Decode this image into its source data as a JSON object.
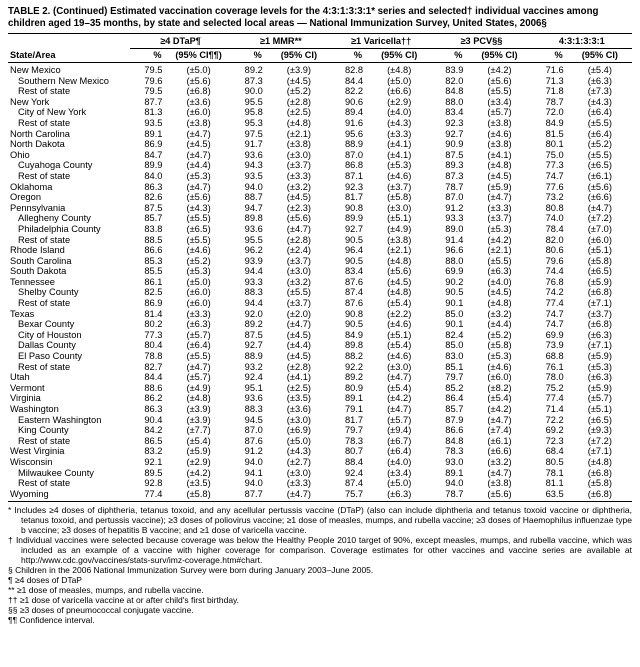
{
  "title": "TABLE 2. (Continued) Estimated vaccination coverage levels for the 4:3:1:3:3:1* series and selected† individual vaccines among children aged 19–35 months, by state and selected local areas — National Immunization Survey, United States, 2006§",
  "columns": {
    "state_area": "State/Area",
    "groups": [
      {
        "label": "≥4 DTaP¶",
        "sub": [
          "%",
          "(95% CI¶¶)"
        ]
      },
      {
        "label": "≥1 MMR**",
        "sub": [
          "%",
          "(95% CI)"
        ]
      },
      {
        "label": "≥1 Varicella††",
        "sub": [
          "%",
          "(95% CI)"
        ]
      },
      {
        "label": "≥3 PCV§§",
        "sub": [
          "%",
          "(95% CI)"
        ]
      },
      {
        "label": "4:3:1:3:3:1",
        "sub": [
          "%",
          "(95% CI)"
        ]
      }
    ]
  },
  "rows": [
    {
      "area": "New Mexico",
      "indent": false,
      "values": [
        [
          "79.5",
          "(±5.0)"
        ],
        [
          "89.2",
          "(±3.9)"
        ],
        [
          "82.8",
          "(±4.8)"
        ],
        [
          "83.9",
          "(±4.2)"
        ],
        [
          "71.6",
          "(±5.4)"
        ]
      ]
    },
    {
      "area": "Southern New Mexico",
      "indent": true,
      "values": [
        [
          "79.6",
          "(±5.6)"
        ],
        [
          "87.3",
          "(±4.5)"
        ],
        [
          "84.4",
          "(±5.0)"
        ],
        [
          "82.0",
          "(±5.6)"
        ],
        [
          "71.3",
          "(±6.3)"
        ]
      ]
    },
    {
      "area": "Rest of state",
      "indent": true,
      "values": [
        [
          "79.5",
          "(±6.8)"
        ],
        [
          "90.0",
          "(±5.2)"
        ],
        [
          "82.2",
          "(±6.6)"
        ],
        [
          "84.8",
          "(±5.5)"
        ],
        [
          "71.8",
          "(±7.3)"
        ]
      ]
    },
    {
      "area": "New York",
      "indent": false,
      "values": [
        [
          "87.7",
          "(±3.6)"
        ],
        [
          "95.5",
          "(±2.8)"
        ],
        [
          "90.6",
          "(±2.9)"
        ],
        [
          "88.0",
          "(±3.4)"
        ],
        [
          "78.7",
          "(±4.3)"
        ]
      ]
    },
    {
      "area": "City of New York",
      "indent": true,
      "values": [
        [
          "81.3",
          "(±6.0)"
        ],
        [
          "95.8",
          "(±2.5)"
        ],
        [
          "89.4",
          "(±4.0)"
        ],
        [
          "83.4",
          "(±5.7)"
        ],
        [
          "72.0",
          "(±6.4)"
        ]
      ]
    },
    {
      "area": "Rest of state",
      "indent": true,
      "values": [
        [
          "93.5",
          "(±3.8)"
        ],
        [
          "95.3",
          "(±4.8)"
        ],
        [
          "91.6",
          "(±4.3)"
        ],
        [
          "92.3",
          "(±3.8)"
        ],
        [
          "84.9",
          "(±5.5)"
        ]
      ]
    },
    {
      "area": "North Carolina",
      "indent": false,
      "values": [
        [
          "89.1",
          "(±4.7)"
        ],
        [
          "97.5",
          "(±2.1)"
        ],
        [
          "95.6",
          "(±3.3)"
        ],
        [
          "92.7",
          "(±4.6)"
        ],
        [
          "81.5",
          "(±6.4)"
        ]
      ]
    },
    {
      "area": "North Dakota",
      "indent": false,
      "values": [
        [
          "86.9",
          "(±4.5)"
        ],
        [
          "91.7",
          "(±3.8)"
        ],
        [
          "88.9",
          "(±4.1)"
        ],
        [
          "90.9",
          "(±3.8)"
        ],
        [
          "80.1",
          "(±5.2)"
        ]
      ]
    },
    {
      "area": "Ohio",
      "indent": false,
      "values": [
        [
          "84.7",
          "(±4.7)"
        ],
        [
          "93.6",
          "(±3.0)"
        ],
        [
          "87.0",
          "(±4.1)"
        ],
        [
          "87.5",
          "(±4.1)"
        ],
        [
          "75.0",
          "(±5.5)"
        ]
      ]
    },
    {
      "area": "Cuyahoga County",
      "indent": true,
      "values": [
        [
          "89.9",
          "(±4.4)"
        ],
        [
          "94.3",
          "(±3.7)"
        ],
        [
          "86.8",
          "(±5.3)"
        ],
        [
          "89.3",
          "(±4.8)"
        ],
        [
          "77.3",
          "(±6.5)"
        ]
      ]
    },
    {
      "area": "Rest of state",
      "indent": true,
      "values": [
        [
          "84.0",
          "(±5.3)"
        ],
        [
          "93.5",
          "(±3.3)"
        ],
        [
          "87.1",
          "(±4.6)"
        ],
        [
          "87.3",
          "(±4.5)"
        ],
        [
          "74.7",
          "(±6.1)"
        ]
      ]
    },
    {
      "area": "Oklahoma",
      "indent": false,
      "values": [
        [
          "86.3",
          "(±4.7)"
        ],
        [
          "94.0",
          "(±3.2)"
        ],
        [
          "92.3",
          "(±3.7)"
        ],
        [
          "78.7",
          "(±5.9)"
        ],
        [
          "77.6",
          "(±5.6)"
        ]
      ]
    },
    {
      "area": "Oregon",
      "indent": false,
      "values": [
        [
          "82.6",
          "(±5.6)"
        ],
        [
          "88.7",
          "(±4.5)"
        ],
        [
          "81.7",
          "(±5.8)"
        ],
        [
          "87.0",
          "(±4.7)"
        ],
        [
          "73.2",
          "(±6.6)"
        ]
      ]
    },
    {
      "area": "Pennsylvania",
      "indent": false,
      "values": [
        [
          "87.5",
          "(±4.3)"
        ],
        [
          "94.7",
          "(±2.3)"
        ],
        [
          "90.8",
          "(±3.0)"
        ],
        [
          "91.2",
          "(±3.3)"
        ],
        [
          "80.8",
          "(±4.7)"
        ]
      ]
    },
    {
      "area": "Allegheny County",
      "indent": true,
      "values": [
        [
          "85.7",
          "(±5.5)"
        ],
        [
          "89.8",
          "(±5.6)"
        ],
        [
          "89.9",
          "(±5.1)"
        ],
        [
          "93.3",
          "(±3.7)"
        ],
        [
          "74.0",
          "(±7.2)"
        ]
      ]
    },
    {
      "area": "Philadelphia County",
      "indent": true,
      "values": [
        [
          "83.8",
          "(±6.5)"
        ],
        [
          "93.6",
          "(±4.7)"
        ],
        [
          "92.7",
          "(±4.9)"
        ],
        [
          "89.0",
          "(±5.3)"
        ],
        [
          "78.4",
          "(±7.0)"
        ]
      ]
    },
    {
      "area": "Rest of state",
      "indent": true,
      "values": [
        [
          "88.5",
          "(±5.5)"
        ],
        [
          "95.5",
          "(±2.8)"
        ],
        [
          "90.5",
          "(±3.8)"
        ],
        [
          "91.4",
          "(±4.2)"
        ],
        [
          "82.0",
          "(±6.0)"
        ]
      ]
    },
    {
      "area": "Rhode Island",
      "indent": false,
      "values": [
        [
          "86.6",
          "(±4.6)"
        ],
        [
          "96.2",
          "(±2.4)"
        ],
        [
          "96.4",
          "(±2.1)"
        ],
        [
          "96.6",
          "(±2.1)"
        ],
        [
          "80.6",
          "(±5.1)"
        ]
      ]
    },
    {
      "area": "South Carolina",
      "indent": false,
      "values": [
        [
          "85.3",
          "(±5.2)"
        ],
        [
          "93.9",
          "(±3.7)"
        ],
        [
          "90.5",
          "(±4.8)"
        ],
        [
          "88.0",
          "(±5.5)"
        ],
        [
          "79.6",
          "(±5.8)"
        ]
      ]
    },
    {
      "area": "South Dakota",
      "indent": false,
      "values": [
        [
          "85.5",
          "(±5.3)"
        ],
        [
          "94.4",
          "(±3.0)"
        ],
        [
          "83.4",
          "(±5.6)"
        ],
        [
          "69.9",
          "(±6.3)"
        ],
        [
          "74.4",
          "(±6.5)"
        ]
      ]
    },
    {
      "area": "Tennessee",
      "indent": false,
      "values": [
        [
          "86.1",
          "(±5.0)"
        ],
        [
          "93.3",
          "(±3.2)"
        ],
        [
          "87.6",
          "(±4.5)"
        ],
        [
          "90.2",
          "(±4.0)"
        ],
        [
          "76.8",
          "(±5.9)"
        ]
      ]
    },
    {
      "area": "Shelby County",
      "indent": true,
      "values": [
        [
          "82.5",
          "(±6.0)"
        ],
        [
          "88.3",
          "(±5.5)"
        ],
        [
          "87.4",
          "(±4.8)"
        ],
        [
          "90.5",
          "(±4.5)"
        ],
        [
          "74.2",
          "(±6.8)"
        ]
      ]
    },
    {
      "area": "Rest of state",
      "indent": true,
      "values": [
        [
          "86.9",
          "(±6.0)"
        ],
        [
          "94.4",
          "(±3.7)"
        ],
        [
          "87.6",
          "(±5.4)"
        ],
        [
          "90.1",
          "(±4.8)"
        ],
        [
          "77.4",
          "(±7.1)"
        ]
      ]
    },
    {
      "area": "Texas",
      "indent": false,
      "values": [
        [
          "81.4",
          "(±3.3)"
        ],
        [
          "92.0",
          "(±2.0)"
        ],
        [
          "90.8",
          "(±2.2)"
        ],
        [
          "85.0",
          "(±3.2)"
        ],
        [
          "74.7",
          "(±3.7)"
        ]
      ]
    },
    {
      "area": "Bexar County",
      "indent": true,
      "values": [
        [
          "80.2",
          "(±6.3)"
        ],
        [
          "89.2",
          "(±4.7)"
        ],
        [
          "90.5",
          "(±4.6)"
        ],
        [
          "90.1",
          "(±4.4)"
        ],
        [
          "74.7",
          "(±6.8)"
        ]
      ]
    },
    {
      "area": "City of Houston",
      "indent": true,
      "values": [
        [
          "77.3",
          "(±5.7)"
        ],
        [
          "87.5",
          "(±4.5)"
        ],
        [
          "84.9",
          "(±5.1)"
        ],
        [
          "82.4",
          "(±5.2)"
        ],
        [
          "69.9",
          "(±6.3)"
        ]
      ]
    },
    {
      "area": "Dallas County",
      "indent": true,
      "values": [
        [
          "80.4",
          "(±6.4)"
        ],
        [
          "92.7",
          "(±4.4)"
        ],
        [
          "89.8",
          "(±5.4)"
        ],
        [
          "85.0",
          "(±5.8)"
        ],
        [
          "73.9",
          "(±7.1)"
        ]
      ]
    },
    {
      "area": "El Paso County",
      "indent": true,
      "values": [
        [
          "78.8",
          "(±5.5)"
        ],
        [
          "88.9",
          "(±4.5)"
        ],
        [
          "88.2",
          "(±4.6)"
        ],
        [
          "83.0",
          "(±5.3)"
        ],
        [
          "68.8",
          "(±5.9)"
        ]
      ]
    },
    {
      "area": "Rest of state",
      "indent": true,
      "values": [
        [
          "82.7",
          "(±4.7)"
        ],
        [
          "93.2",
          "(±2.8)"
        ],
        [
          "92.2",
          "(±3.0)"
        ],
        [
          "85.1",
          "(±4.6)"
        ],
        [
          "76.1",
          "(±5.3)"
        ]
      ]
    },
    {
      "area": "Utah",
      "indent": false,
      "values": [
        [
          "84.4",
          "(±5.7)"
        ],
        [
          "92.4",
          "(±4.1)"
        ],
        [
          "89.2",
          "(±4.7)"
        ],
        [
          "79.7",
          "(±6.0)"
        ],
        [
          "78.0",
          "(±6.3)"
        ]
      ]
    },
    {
      "area": "Vermont",
      "indent": false,
      "values": [
        [
          "88.6",
          "(±4.9)"
        ],
        [
          "95.1",
          "(±2.5)"
        ],
        [
          "80.9",
          "(±5.4)"
        ],
        [
          "85.2",
          "(±8.2)"
        ],
        [
          "75.2",
          "(±5.9)"
        ]
      ]
    },
    {
      "area": "Virginia",
      "indent": false,
      "values": [
        [
          "86.2",
          "(±4.8)"
        ],
        [
          "93.6",
          "(±3.5)"
        ],
        [
          "89.1",
          "(±4.2)"
        ],
        [
          "86.4",
          "(±5.4)"
        ],
        [
          "77.4",
          "(±5.7)"
        ]
      ]
    },
    {
      "area": "Washington",
      "indent": false,
      "values": [
        [
          "86.3",
          "(±3.9)"
        ],
        [
          "88.3",
          "(±3.6)"
        ],
        [
          "79.1",
          "(±4.7)"
        ],
        [
          "85.7",
          "(±4.2)"
        ],
        [
          "71.4",
          "(±5.1)"
        ]
      ]
    },
    {
      "area": "Eastern Washington",
      "indent": true,
      "values": [
        [
          "90.4",
          "(±3.9)"
        ],
        [
          "94.5",
          "(±3.0)"
        ],
        [
          "81.7",
          "(±5.7)"
        ],
        [
          "87.9",
          "(±4.7)"
        ],
        [
          "72.2",
          "(±6.5)"
        ]
      ]
    },
    {
      "area": "King County",
      "indent": true,
      "values": [
        [
          "84.2",
          "(±7.7)"
        ],
        [
          "87.0",
          "(±6.9)"
        ],
        [
          "79.7",
          "(±9.4)"
        ],
        [
          "86.6",
          "(±7.4)"
        ],
        [
          "69.2",
          "(±9.3)"
        ]
      ]
    },
    {
      "area": "Rest of state",
      "indent": true,
      "values": [
        [
          "86.5",
          "(±5.4)"
        ],
        [
          "87.6",
          "(±5.0)"
        ],
        [
          "78.3",
          "(±6.7)"
        ],
        [
          "84.8",
          "(±6.1)"
        ],
        [
          "72.3",
          "(±7.2)"
        ]
      ]
    },
    {
      "area": "West Virginia",
      "indent": false,
      "values": [
        [
          "83.2",
          "(±5.9)"
        ],
        [
          "91.2",
          "(±4.3)"
        ],
        [
          "80.7",
          "(±6.4)"
        ],
        [
          "78.3",
          "(±6.6)"
        ],
        [
          "68.4",
          "(±7.1)"
        ]
      ]
    },
    {
      "area": "Wisconsin",
      "indent": false,
      "values": [
        [
          "92.1",
          "(±2.9)"
        ],
        [
          "94.0",
          "(±2.7)"
        ],
        [
          "88.4",
          "(±4.0)"
        ],
        [
          "93.0",
          "(±3.2)"
        ],
        [
          "80.5",
          "(±4.8)"
        ]
      ]
    },
    {
      "area": "Milwaukee County",
      "indent": true,
      "values": [
        [
          "89.5",
          "(±4.2)"
        ],
        [
          "94.1",
          "(±3.0)"
        ],
        [
          "92.4",
          "(±3.4)"
        ],
        [
          "89.1",
          "(±4.7)"
        ],
        [
          "78.1",
          "(±6.8)"
        ]
      ]
    },
    {
      "area": "Rest of state",
      "indent": true,
      "values": [
        [
          "92.8",
          "(±3.5)"
        ],
        [
          "94.0",
          "(±3.3)"
        ],
        [
          "87.4",
          "(±5.0)"
        ],
        [
          "94.0",
          "(±3.8)"
        ],
        [
          "81.1",
          "(±5.8)"
        ]
      ]
    },
    {
      "area": "Wyoming",
      "indent": false,
      "values": [
        [
          "77.4",
          "(±5.8)"
        ],
        [
          "87.7",
          "(±4.7)"
        ],
        [
          "75.7",
          "(±6.3)"
        ],
        [
          "78.7",
          "(±5.6)"
        ],
        [
          "63.5",
          "(±6.8)"
        ]
      ]
    }
  ],
  "footnotes": [
    {
      "marker": "*",
      "text": "Includes ≥4 doses of diphtheria, tetanus toxoid, and any acellular pertussis vaccine (DTaP) (also can include diphtheria and tetanus toxoid vaccine or diphtheria, tetanus toxoid, and pertussis vaccine); ≥3 doses of poliovirus vaccine; ≥1 dose of measles, mumps, and rubella vaccine; ≥3 doses of Haemophilus influenzae type b vaccine; ≥3 doses of hepatitis B vaccine; and ≥1 dose of varicella vaccine."
    },
    {
      "marker": "†",
      "text": "Individual vaccines were selected because coverage was below the Healthy People 2010 target of 90%, except measles, mumps, and rubella vaccine, which was included as an example of a vaccine with higher coverage for comparison. Coverage estimates for other vaccines and vaccine series are available at http://www.cdc.gov/vaccines/stats-surv/imz-coverage.htm#chart."
    },
    {
      "marker": "§",
      "text": "Children in the 2006 National Immunization Survey were born during January 2003–June 2005."
    },
    {
      "marker": "¶",
      "text": "≥4 doses of DTaP"
    },
    {
      "marker": "**",
      "text": "≥1 dose of measles, mumps, and rubella vaccine."
    },
    {
      "marker": "††",
      "text": "≥1 dose of varicella vaccine at or after child's first birthday."
    },
    {
      "marker": "§§",
      "text": "≥3 doses of pneumococcal conjugate vaccine."
    },
    {
      "marker": "¶¶",
      "text": "Confidence interval."
    }
  ]
}
